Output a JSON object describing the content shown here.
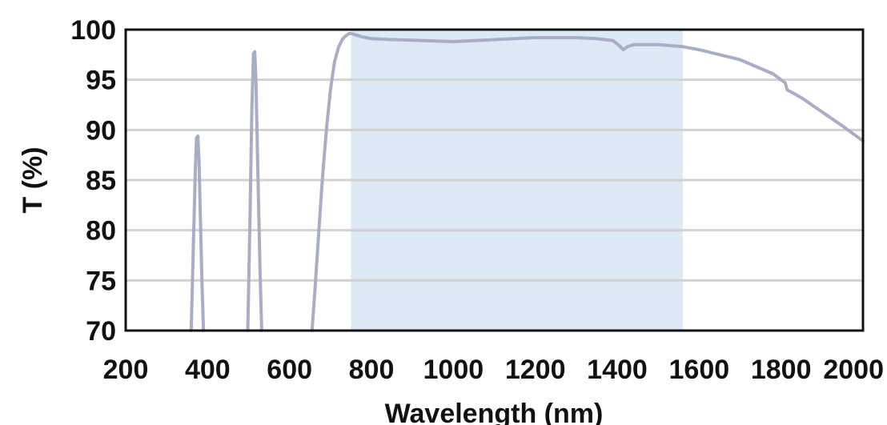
{
  "chart_data": {
    "type": "line",
    "title": "",
    "xlabel": "Wavelength (nm)",
    "ylabel": "T (%)",
    "xlim": [
      200,
      2000
    ],
    "ylim": [
      70,
      100
    ],
    "x_ticks": [
      "200",
      "400",
      "600",
      "800",
      "1000",
      "1200",
      "1400",
      "1600",
      "1800",
      "2000"
    ],
    "y_ticks": [
      "100",
      "95",
      "90",
      "85",
      "80",
      "75",
      "70"
    ],
    "grid": true,
    "shaded_band": {
      "x_start": 750,
      "x_end": 1560,
      "color": "#dde9f5"
    },
    "series": [
      {
        "color": "#a9aec4",
        "segments": [
          {
            "x": [
              360,
              365,
              370,
              373,
              376,
              379,
              382,
              386,
              390
            ],
            "y": [
              70,
              78,
              86,
              89.2,
              89.4,
              87,
              82,
              75,
              70
            ]
          },
          {
            "x": [
              498,
              503,
              508,
              512,
              515,
              518,
              522,
              528,
              532
            ],
            "y": [
              70,
              80,
              92,
              97.6,
              97.8,
              95,
              87,
              76,
              70
            ]
          },
          {
            "x": [
              655,
              662,
              670,
              680,
              690,
              700,
              710,
              720,
              730,
              738,
              745,
              752,
              760,
              775,
              800,
              850,
              900,
              1000,
              1100,
              1200,
              1300,
              1350,
              1390,
              1405,
              1415,
              1425,
              1440,
              1500,
              1560,
              1600,
              1700,
              1780,
              1810,
              1815,
              1850,
              1900,
              1950,
              2000
            ],
            "y": [
              70,
              74,
              79,
              85,
              90,
              94,
              96.8,
              98.3,
              99.1,
              99.4,
              99.6,
              99.6,
              99.5,
              99.3,
              99.1,
              99.0,
              98.95,
              98.8,
              99.0,
              99.2,
              99.2,
              99.1,
              98.9,
              98.4,
              98.0,
              98.3,
              98.5,
              98.5,
              98.3,
              98.0,
              97.0,
              95.6,
              94.7,
              94.0,
              93.2,
              91.8,
              90.4,
              88.9
            ]
          }
        ]
      }
    ]
  }
}
